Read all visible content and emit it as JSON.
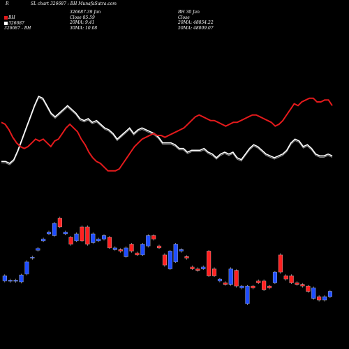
{
  "header": {
    "tag": "R",
    "title": "SL chart 326687 : BH MunafaSutra.com"
  },
  "legend": {
    "label": "BH",
    "price": "326687",
    "sub": "326687 - BH",
    "colors": {
      "price_line": "#e41a1c",
      "ma_line": "#ffffff"
    }
  },
  "left_panel": {
    "lines": [
      "326687.39 Jan",
      "Close 85.59",
      "20MA: 9.41",
      "30MA: 10.08"
    ]
  },
  "right_panel": {
    "lines": [
      "BH 30 Jan",
      "Close",
      "20MA: 48854.22",
      "50MA: 48009.07"
    ]
  },
  "chart_data": {
    "type": "line",
    "colors": {
      "price": "#e41a1c",
      "ma": "#ffffff",
      "ma_shadow": "#888888",
      "up_candle": "#1f4dff",
      "down_candle": "#ff2020"
    },
    "grid": false,
    "series": [
      {
        "values": [
          53,
          52,
          49,
          45,
          42,
          40,
          39,
          40,
          42,
          44,
          43,
          44,
          42,
          40,
          43,
          44,
          47,
          50,
          52,
          50,
          48,
          44,
          41,
          37,
          34,
          32,
          31,
          29,
          27,
          27,
          27,
          28,
          31,
          34,
          37,
          40,
          42,
          44,
          45,
          46,
          47,
          46,
          46,
          45,
          46,
          47,
          48,
          49,
          50,
          52,
          54,
          56,
          57,
          56,
          55,
          54,
          54,
          53,
          52,
          51,
          52,
          53,
          53,
          54,
          55,
          56,
          57,
          57,
          56,
          55,
          54,
          53,
          51,
          52,
          54,
          57,
          60,
          63,
          62,
          64,
          65,
          66,
          66,
          64,
          64,
          65,
          65,
          62
        ]
      },
      {
        "values": [
          32,
          32,
          31,
          33,
          38,
          44,
          50,
          56,
          62,
          67,
          66,
          62,
          58,
          56,
          58,
          60,
          62,
          60,
          58,
          55,
          54,
          55,
          53,
          54,
          52,
          50,
          49,
          47,
          44,
          46,
          48,
          50,
          47,
          49,
          50,
          49,
          48,
          47,
          45,
          42,
          42,
          42,
          41,
          39,
          39,
          37,
          38,
          38,
          38,
          39,
          37,
          36,
          34,
          36,
          37,
          36,
          37,
          34,
          33,
          36,
          39,
          41,
          40,
          38,
          36,
          35,
          34,
          35,
          36,
          38,
          42,
          44,
          43,
          40,
          41,
          39,
          36,
          35,
          35,
          36,
          35
        ]
      }
    ],
    "candles": [
      {
        "bottom": 16.5,
        "height": 1.5,
        "dir": "up"
      },
      {
        "bottom": 16.4,
        "height": 0.3,
        "dir": "up"
      },
      {
        "bottom": 16.4,
        "height": 0.3,
        "dir": "up"
      },
      {
        "bottom": 16.2,
        "height": 2,
        "dir": "up"
      },
      {
        "bottom": 18.5,
        "height": 3.5,
        "dir": "up"
      },
      {
        "bottom": 23.0,
        "height": 0.3,
        "dir": "up"
      },
      {
        "bottom": 25.3,
        "height": 0.5,
        "dir": "up"
      },
      {
        "bottom": 28.0,
        "height": 0.5,
        "dir": "up"
      },
      {
        "bottom": 30.0,
        "height": 0.5,
        "dir": "up"
      },
      {
        "bottom": 29.5,
        "height": 3.5,
        "dir": "up"
      },
      {
        "bottom": 32.0,
        "height": 2.5,
        "dir": "down"
      },
      {
        "bottom": 30.0,
        "height": 0.5,
        "dir": "up"
      },
      {
        "bottom": 27.0,
        "height": 2,
        "dir": "down"
      },
      {
        "bottom": 28.0,
        "height": 2,
        "dir": "up"
      },
      {
        "bottom": 28.0,
        "height": 4,
        "dir": "down"
      },
      {
        "bottom": 27.0,
        "height": 5,
        "dir": "down"
      },
      {
        "bottom": 27.5,
        "height": 2.5,
        "dir": "up"
      },
      {
        "bottom": 28.0,
        "height": 0.5,
        "dir": "up"
      },
      {
        "bottom": 28.5,
        "height": 1,
        "dir": "up"
      },
      {
        "bottom": 26.0,
        "height": 3,
        "dir": "down"
      },
      {
        "bottom": 25.5,
        "height": 0.5,
        "dir": "up"
      },
      {
        "bottom": 25.0,
        "height": 0.5,
        "dir": "down"
      },
      {
        "bottom": 23.5,
        "height": 2.5,
        "dir": "up"
      },
      {
        "bottom": 25.0,
        "height": 2,
        "dir": "down"
      },
      {
        "bottom": 24.0,
        "height": 0.5,
        "dir": "down"
      },
      {
        "bottom": 24.0,
        "height": 3,
        "dir": "up"
      },
      {
        "bottom": 26.5,
        "height": 3,
        "dir": "up"
      },
      {
        "bottom": 28.5,
        "height": 1,
        "dir": "down"
      },
      {
        "bottom": 26.0,
        "height": 0.5,
        "dir": "down"
      },
      {
        "bottom": 21.0,
        "height": 3,
        "dir": "down"
      },
      {
        "bottom": 20.0,
        "height": 5,
        "dir": "up"
      },
      {
        "bottom": 22.0,
        "height": 5,
        "dir": "up"
      },
      {
        "bottom": 25.0,
        "height": 0.5,
        "dir": "up"
      },
      {
        "bottom": 23.0,
        "height": 0.5,
        "dir": "down"
      },
      {
        "bottom": 20.0,
        "height": 0.5,
        "dir": "down"
      },
      {
        "bottom": 19.5,
        "height": 0.5,
        "dir": "down"
      },
      {
        "bottom": 20.0,
        "height": 0.5,
        "dir": "up"
      },
      {
        "bottom": 18.0,
        "height": 7,
        "dir": "down"
      },
      {
        "bottom": 18.0,
        "height": 2,
        "dir": "down"
      },
      {
        "bottom": 16.5,
        "height": 0.5,
        "dir": "up"
      },
      {
        "bottom": 15.5,
        "height": 0.5,
        "dir": "down"
      },
      {
        "bottom": 15.5,
        "height": 4.5,
        "dir": "up"
      },
      {
        "bottom": 15.0,
        "height": 4.5,
        "dir": "down"
      },
      {
        "bottom": 14.5,
        "height": 0.5,
        "dir": "up"
      },
      {
        "bottom": 10.0,
        "height": 5,
        "dir": "up"
      },
      {
        "bottom": 14.5,
        "height": 0.5,
        "dir": "down"
      },
      {
        "bottom": 16.0,
        "height": 0.5,
        "dir": "down"
      },
      {
        "bottom": 14.0,
        "height": 2.5,
        "dir": "down"
      },
      {
        "bottom": 14.5,
        "height": 0.5,
        "dir": "down"
      },
      {
        "bottom": 16.0,
        "height": 3,
        "dir": "up"
      },
      {
        "bottom": 19.0,
        "height": 5,
        "dir": "down"
      },
      {
        "bottom": 17.0,
        "height": 1,
        "dir": "down"
      },
      {
        "bottom": 16.0,
        "height": 2,
        "dir": "down"
      },
      {
        "bottom": 15.5,
        "height": 0.5,
        "dir": "down"
      },
      {
        "bottom": 15.0,
        "height": 0.5,
        "dir": "down"
      },
      {
        "bottom": 13.5,
        "height": 1.5,
        "dir": "down"
      },
      {
        "bottom": 11.5,
        "height": 3,
        "dir": "up"
      },
      {
        "bottom": 11.0,
        "height": 1,
        "dir": "down"
      },
      {
        "bottom": 11.0,
        "height": 1,
        "dir": "up"
      },
      {
        "bottom": 12.0,
        "height": 1.5,
        "dir": "up"
      }
    ]
  }
}
